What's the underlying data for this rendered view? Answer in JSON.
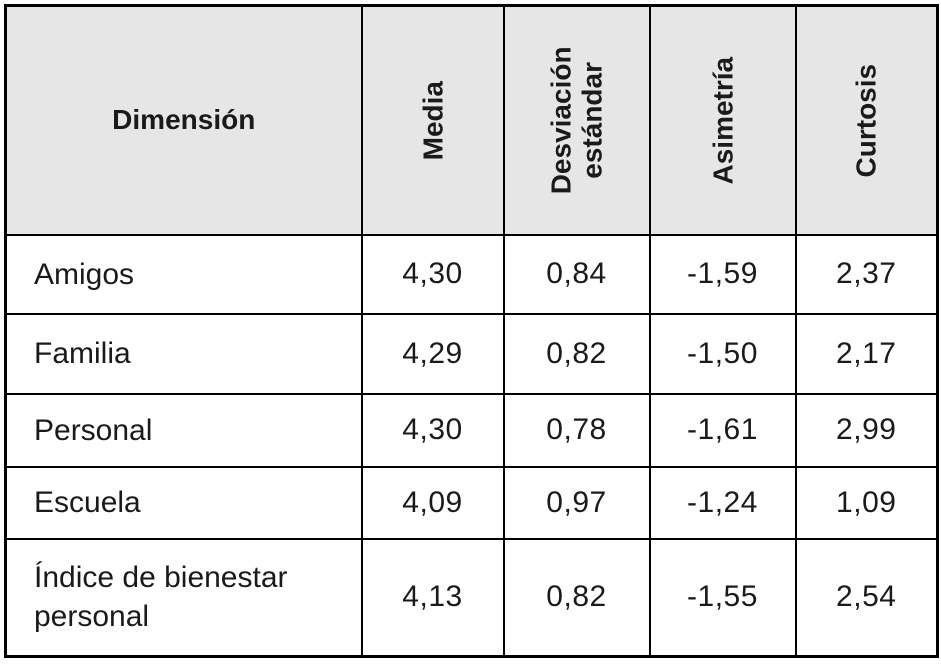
{
  "table": {
    "title_semantic": "descriptive-statistics-by-dimension",
    "headers": {
      "dimension": "Dimensión",
      "media": "Media",
      "desviacion": "Desviación estándar",
      "asimetria": "Asimetría",
      "curtosis": "Curtosis"
    },
    "rows": [
      {
        "dimension": "Amigos",
        "media": "4,30",
        "desviacion": "0,84",
        "asimetria": "-1,59",
        "curtosis": "2,37"
      },
      {
        "dimension": "Familia",
        "media": "4,29",
        "desviacion": "0,82",
        "asimetria": "-1,50",
        "curtosis": "2,17"
      },
      {
        "dimension": "Personal",
        "media": "4,30",
        "desviacion": "0,78",
        "asimetria": "-1,61",
        "curtosis": "2,99"
      },
      {
        "dimension": "Escuela",
        "media": "4,09",
        "desviacion": "0,97",
        "asimetria": "-1,24",
        "curtosis": "1,09"
      },
      {
        "dimension": "Índice de bienestar personal",
        "media": "4,13",
        "desviacion": "0,82",
        "asimetria": "-1,55",
        "curtosis": "2,54"
      }
    ],
    "colors": {
      "header_background": "#e6e6e6",
      "border": "#000000",
      "text": "#1a1a1a",
      "body_background": "#ffffff"
    }
  }
}
